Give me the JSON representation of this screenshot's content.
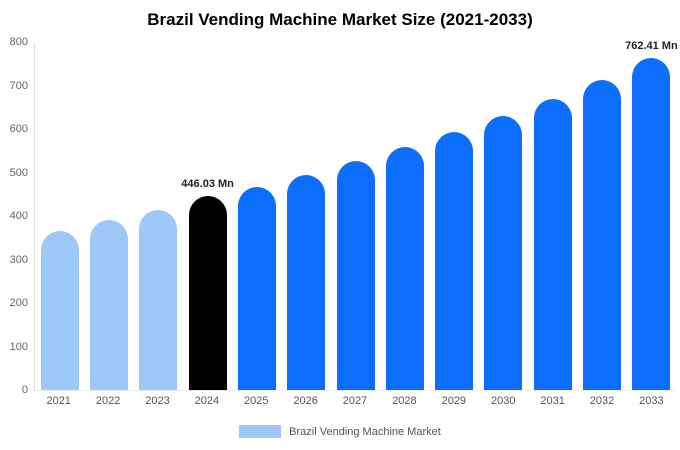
{
  "title": "Brazil Vending Machine Market Size (2021-2033)",
  "legend": {
    "label": "Brazil Vending Machine Market",
    "swatch_color_key": "light"
  },
  "colors": {
    "light": "#9ec8f7",
    "primary": "#0d6efd",
    "highlight": "#000000",
    "axis_line": "#e0e0e0",
    "tick_text": "#666666",
    "value_label_text": "#222222"
  },
  "chart_data": {
    "type": "bar",
    "title": "Brazil Vending Machine Market Size (2021-2033)",
    "categories": [
      "2021",
      "2022",
      "2023",
      "2024",
      "2025",
      "2026",
      "2027",
      "2028",
      "2029",
      "2030",
      "2031",
      "2032",
      "2033"
    ],
    "values": [
      365,
      390,
      413,
      446.03,
      467,
      495,
      527,
      558,
      593,
      630,
      668,
      712,
      762.41
    ],
    "bar_color_keys": [
      "light",
      "light",
      "light",
      "highlight",
      "primary",
      "primary",
      "primary",
      "primary",
      "primary",
      "primary",
      "primary",
      "primary",
      "primary"
    ],
    "data_labels": {
      "2024": "446.03 Mn",
      "2033": "762.41 Mn"
    },
    "xlabel": "",
    "ylabel": "",
    "ylim": [
      0,
      800
    ],
    "yticks": [
      0,
      100,
      200,
      300,
      400,
      500,
      600,
      700,
      800
    ],
    "grid": false,
    "legend_position": "bottom",
    "legend_entries": [
      "Brazil Vending Machine Market"
    ]
  }
}
